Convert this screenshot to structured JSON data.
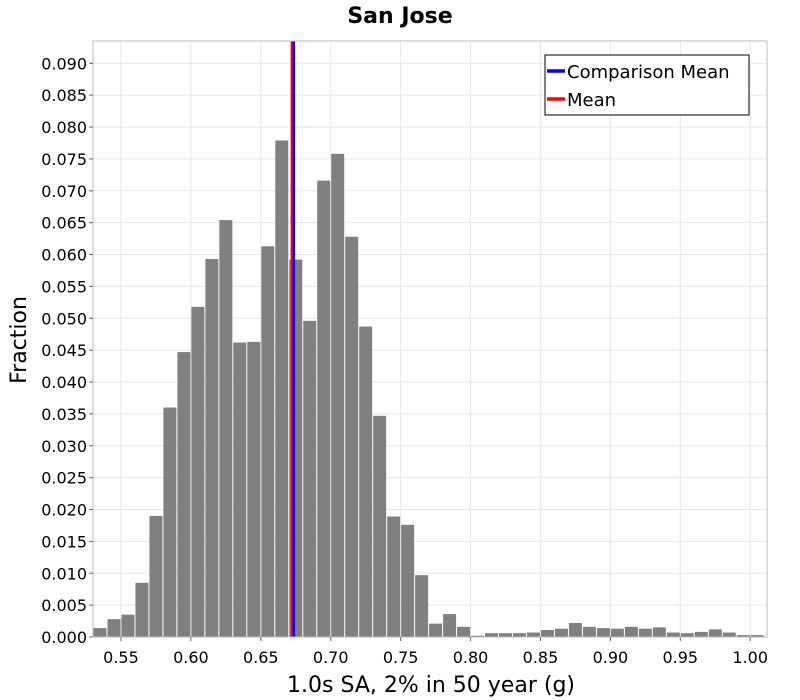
{
  "chart_data": {
    "type": "bar",
    "title": "San Jose",
    "xlabel": "1.0s SA, 2% in 50 year (g)",
    "ylabel": "Fraction",
    "xlim": [
      0.53,
      1.012
    ],
    "ylim": [
      0,
      0.0935
    ],
    "grid": true,
    "bin_width": 0.01,
    "bin_starts": [
      0.53,
      0.54,
      0.55,
      0.56,
      0.57,
      0.58,
      0.59,
      0.6,
      0.61,
      0.62,
      0.63,
      0.64,
      0.65,
      0.66,
      0.67,
      0.68,
      0.69,
      0.7,
      0.71,
      0.72,
      0.73,
      0.74,
      0.75,
      0.76,
      0.77,
      0.78,
      0.79,
      0.8,
      0.81,
      0.82,
      0.83,
      0.84,
      0.85,
      0.86,
      0.87,
      0.88,
      0.89,
      0.9,
      0.91,
      0.92,
      0.93,
      0.94,
      0.95,
      0.96,
      0.97,
      0.98,
      0.99,
      1.0
    ],
    "values": [
      0.0014,
      0.0028,
      0.0035,
      0.0085,
      0.019,
      0.036,
      0.0447,
      0.0518,
      0.0593,
      0.0654,
      0.0462,
      0.0463,
      0.0613,
      0.0779,
      0.0592,
      0.0496,
      0.0716,
      0.0758,
      0.0628,
      0.0487,
      0.0347,
      0.0189,
      0.0176,
      0.0097,
      0.0021,
      0.0036,
      0.0016,
      0.0002,
      0.0006,
      0.0006,
      0.0006,
      0.0007,
      0.0011,
      0.0013,
      0.0022,
      0.0016,
      0.0014,
      0.0013,
      0.0016,
      0.0013,
      0.0015,
      0.0007,
      0.0006,
      0.0008,
      0.0012,
      0.0007,
      0.0003,
      0.0003
    ],
    "bar_color": "#808080",
    "x_ticks": [
      0.55,
      0.6,
      0.65,
      0.7,
      0.75,
      0.8,
      0.85,
      0.9,
      0.95,
      1.0
    ],
    "x_tick_labels": [
      "0.55",
      "0.60",
      "0.65",
      "0.70",
      "0.75",
      "0.80",
      "0.85",
      "0.90",
      "0.95",
      "1.00"
    ],
    "y_ticks": [
      0,
      0.005,
      0.01,
      0.015,
      0.02,
      0.025,
      0.03,
      0.035,
      0.04,
      0.045,
      0.05,
      0.055,
      0.06,
      0.065,
      0.07,
      0.075,
      0.08,
      0.085,
      0.09
    ],
    "y_tick_labels": [
      "0.000",
      "0.005",
      "0.010",
      "0.015",
      "0.020",
      "0.025",
      "0.030",
      "0.035",
      "0.040",
      "0.045",
      "0.050",
      "0.055",
      "0.060",
      "0.065",
      "0.070",
      "0.075",
      "0.080",
      "0.085",
      "0.090"
    ],
    "vlines": [
      {
        "name": "Comparison Mean",
        "x": 0.6736,
        "color": "#0000ff"
      },
      {
        "name": "Mean",
        "x": 0.6722,
        "color": "#ff0000"
      }
    ],
    "legend": {
      "position": "top-right",
      "entries": [
        {
          "label": "Comparison Mean",
          "color": "#0000ff"
        },
        {
          "label": "Mean",
          "color": "#ff0000"
        }
      ]
    }
  }
}
